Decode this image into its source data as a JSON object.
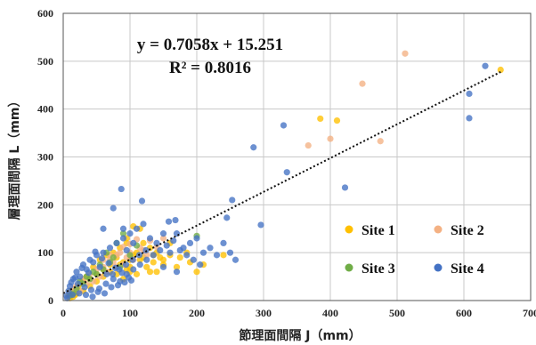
{
  "chart_data": {
    "type": "scatter",
    "xlabel": "節理面間隔 J（mm）",
    "ylabel": "層理面間隔 L（mm）",
    "xlim": [
      0,
      700
    ],
    "ylim": [
      0,
      600
    ],
    "x_ticks": [
      "0",
      "100",
      "200",
      "300",
      "400",
      "500",
      "600",
      "700"
    ],
    "y_ticks": [
      "0",
      "100",
      "200",
      "300",
      "400",
      "500",
      "600"
    ],
    "grid": true,
    "legend_position": "lower-right",
    "trendline": {
      "slope": 0.7058,
      "intercept": 15.251,
      "x_range": [
        0,
        655
      ],
      "equation": "y = 0.7058x + 15.251",
      "r2": "R² = 0.8016"
    },
    "series": [
      {
        "name": "Site 1",
        "color": "#FFC000",
        "points": [
          [
            655,
            482
          ],
          [
            385,
            380
          ],
          [
            410,
            376
          ],
          [
            105,
            155
          ],
          [
            115,
            150
          ],
          [
            95,
            130
          ],
          [
            120,
            120
          ],
          [
            130,
            110
          ],
          [
            140,
            100
          ],
          [
            160,
            95
          ],
          [
            175,
            90
          ],
          [
            190,
            80
          ],
          [
            200,
            60
          ],
          [
            150,
            75
          ],
          [
            130,
            60
          ],
          [
            110,
            55
          ],
          [
            100,
            70
          ],
          [
            90,
            80
          ],
          [
            80,
            90
          ],
          [
            70,
            60
          ],
          [
            60,
            50
          ],
          [
            50,
            40
          ],
          [
            40,
            30
          ],
          [
            30,
            20
          ],
          [
            20,
            15
          ],
          [
            15,
            8
          ],
          [
            10,
            5
          ],
          [
            25,
            35
          ],
          [
            35,
            50
          ],
          [
            45,
            70
          ],
          [
            55,
            85
          ],
          [
            65,
            95
          ],
          [
            75,
            100
          ],
          [
            85,
            110
          ],
          [
            95,
            120
          ],
          [
            105,
            95
          ],
          [
            115,
            85
          ],
          [
            125,
            70
          ],
          [
            135,
            80
          ],
          [
            145,
            90
          ],
          [
            170,
            70
          ],
          [
            185,
            100
          ],
          [
            210,
            75
          ],
          [
            240,
            95
          ],
          [
            60,
            65
          ],
          [
            70,
            75
          ],
          [
            80,
            55
          ],
          [
            90,
            45
          ],
          [
            100,
            60
          ],
          [
            50,
            55
          ],
          [
            40,
            45
          ],
          [
            30,
            40
          ],
          [
            22,
            28
          ],
          [
            18,
            12
          ],
          [
            12,
            20
          ],
          [
            8,
            10
          ],
          [
            120,
            90
          ],
          [
            110,
            100
          ],
          [
            140,
            60
          ],
          [
            160,
            120
          ],
          [
            135,
            95
          ],
          [
            150,
            85
          ],
          [
            100,
            85
          ],
          [
            95,
            65
          ],
          [
            85,
            75
          ]
        ]
      },
      {
        "name": "Site 2",
        "color": "#F4B183",
        "points": [
          [
            512,
            516
          ],
          [
            448,
            453
          ],
          [
            400,
            338
          ],
          [
            367,
            324
          ],
          [
            475,
            333
          ],
          [
            110,
            128
          ],
          [
            100,
            118
          ],
          [
            120,
            105
          ],
          [
            90,
            112
          ],
          [
            80,
            95
          ],
          [
            70,
            85
          ],
          [
            60,
            70
          ],
          [
            50,
            65
          ],
          [
            40,
            55
          ],
          [
            30,
            45
          ],
          [
            20,
            30
          ],
          [
            15,
            25
          ],
          [
            10,
            15
          ],
          [
            85,
            100
          ],
          [
            95,
            90
          ],
          [
            105,
            85
          ],
          [
            115,
            110
          ],
          [
            125,
            95
          ],
          [
            75,
            80
          ],
          [
            65,
            60
          ],
          [
            55,
            50
          ],
          [
            45,
            40
          ],
          [
            35,
            35
          ],
          [
            25,
            20
          ],
          [
            130,
            125
          ],
          [
            140,
            112
          ],
          [
            100,
            100
          ],
          [
            90,
            75
          ],
          [
            80,
            70
          ],
          [
            70,
            95
          ],
          [
            60,
            85
          ],
          [
            150,
            130
          ]
        ]
      },
      {
        "name": "Site 3",
        "color": "#70AD47",
        "points": [
          [
            90,
            140
          ],
          [
            200,
            135
          ],
          [
            80,
            120
          ],
          [
            100,
            95
          ],
          [
            70,
            80
          ],
          [
            60,
            65
          ],
          [
            50,
            55
          ],
          [
            40,
            45
          ],
          [
            30,
            35
          ],
          [
            20,
            25
          ],
          [
            15,
            15
          ],
          [
            10,
            10
          ],
          [
            110,
            115
          ],
          [
            85,
            70
          ],
          [
            75,
            90
          ],
          [
            65,
            100
          ],
          [
            55,
            75
          ],
          [
            45,
            60
          ],
          [
            35,
            50
          ],
          [
            25,
            40
          ]
        ]
      },
      {
        "name": "Site 4",
        "color": "#4472C4",
        "points": [
          [
            632,
            490
          ],
          [
            608,
            432
          ],
          [
            608,
            381
          ],
          [
            330,
            366
          ],
          [
            285,
            320
          ],
          [
            335,
            268
          ],
          [
            422,
            236
          ],
          [
            296,
            158
          ],
          [
            253,
            210
          ],
          [
            87,
            233
          ],
          [
            118,
            208
          ],
          [
            75,
            193
          ],
          [
            168,
            168
          ],
          [
            158,
            165
          ],
          [
            245,
            173
          ],
          [
            258,
            85
          ],
          [
            240,
            120
          ],
          [
            220,
            110
          ],
          [
            120,
            160
          ],
          [
            110,
            150
          ],
          [
            100,
            140
          ],
          [
            90,
            130
          ],
          [
            80,
            120
          ],
          [
            70,
            110
          ],
          [
            60,
            100
          ],
          [
            50,
            95
          ],
          [
            40,
            85
          ],
          [
            30,
            75
          ],
          [
            20,
            60
          ],
          [
            15,
            45
          ],
          [
            10,
            30
          ],
          [
            8,
            20
          ],
          [
            5,
            10
          ],
          [
            25,
            50
          ],
          [
            35,
            65
          ],
          [
            45,
            80
          ],
          [
            55,
            70
          ],
          [
            65,
            55
          ],
          [
            75,
            45
          ],
          [
            85,
            40
          ],
          [
            95,
            55
          ],
          [
            105,
            65
          ],
          [
            115,
            75
          ],
          [
            125,
            85
          ],
          [
            135,
            95
          ],
          [
            145,
            105
          ],
          [
            155,
            115
          ],
          [
            165,
            125
          ],
          [
            175,
            105
          ],
          [
            185,
            95
          ],
          [
            195,
            85
          ],
          [
            205,
            75
          ],
          [
            150,
            140
          ],
          [
            130,
            130
          ],
          [
            140,
            120
          ],
          [
            160,
            100
          ],
          [
            170,
            140
          ],
          [
            180,
            110
          ],
          [
            190,
            120
          ],
          [
            200,
            130
          ],
          [
            210,
            100
          ],
          [
            48,
            102
          ],
          [
            58,
            88
          ],
          [
            68,
            78
          ],
          [
            78,
            68
          ],
          [
            88,
            58
          ],
          [
            98,
            48
          ],
          [
            28,
            68
          ],
          [
            38,
            58
          ],
          [
            18,
            48
          ],
          [
            12,
            38
          ],
          [
            22,
            35
          ],
          [
            32,
            28
          ],
          [
            42,
            22
          ],
          [
            52,
            18
          ],
          [
            62,
            15
          ],
          [
            72,
            28
          ],
          [
            82,
            32
          ],
          [
            92,
            38
          ],
          [
            102,
            42
          ],
          [
            6,
            5
          ],
          [
            14,
            12
          ],
          [
            24,
            15
          ],
          [
            34,
            12
          ],
          [
            44,
            8
          ],
          [
            54,
            25
          ],
          [
            64,
            35
          ],
          [
            74,
            55
          ],
          [
            84,
            65
          ],
          [
            94,
            75
          ],
          [
            104,
            85
          ],
          [
            114,
            95
          ],
          [
            124,
            105
          ],
          [
            250,
            100
          ],
          [
            230,
            95
          ],
          [
            170,
            60
          ],
          [
            150,
            70
          ],
          [
            60,
            150
          ],
          [
            90,
            150
          ],
          [
            95,
            105
          ],
          [
            105,
            120
          ]
        ]
      }
    ]
  }
}
